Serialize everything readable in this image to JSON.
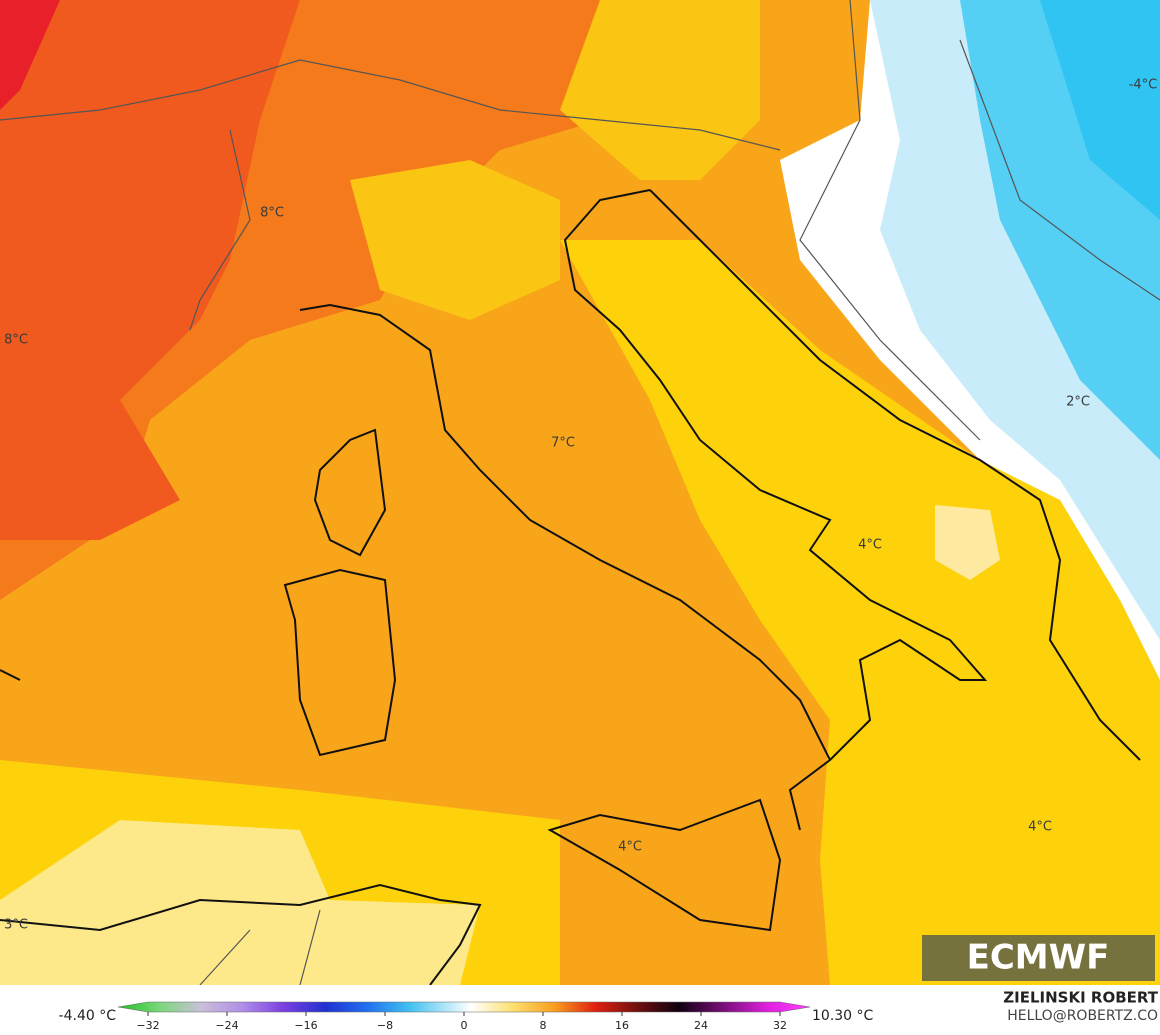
{
  "map": {
    "labels": [
      "8°C",
      "8°C",
      "7°C",
      "4°C",
      "2°C",
      "-4°C",
      "4°C",
      "4°C",
      "3°C"
    ]
  },
  "colorbar": {
    "min_label": "-4.40 °C",
    "max_label": "10.30 °C",
    "ticks": [
      {
        "value": -32,
        "label": "−32"
      },
      {
        "value": -24,
        "label": "−24"
      },
      {
        "value": -16,
        "label": "−16"
      },
      {
        "value": -8,
        "label": "−8"
      },
      0,
      8,
      16,
      24,
      32
    ]
  },
  "logo": "ECMWF",
  "credit": {
    "author": "ZIELINSKI ROBERT",
    "email": "HELLO@ROBERTZ.CO"
  }
}
